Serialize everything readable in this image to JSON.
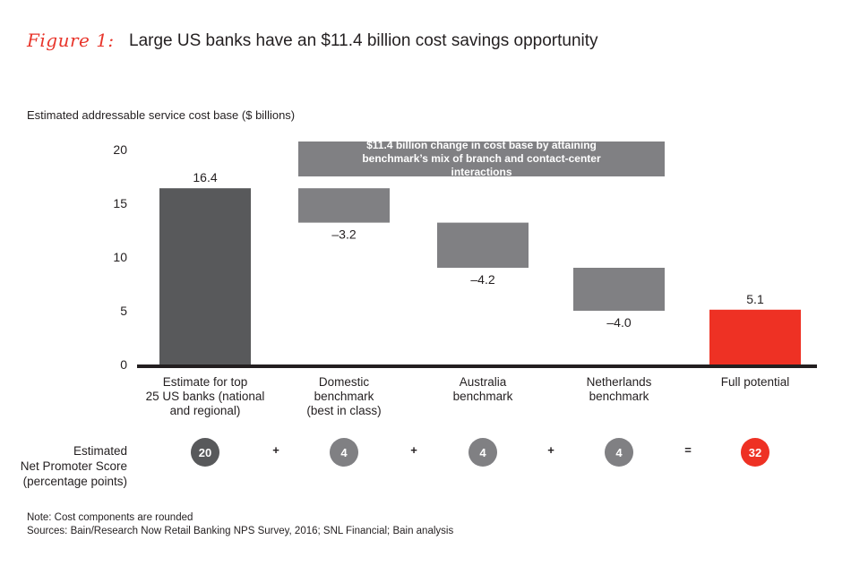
{
  "figure": {
    "label": "Figure 1:",
    "title": "Large US banks have an $11.4 billion cost savings opportunity",
    "y_caption": "Estimated addressable service cost base ($ billions)",
    "callout": "$11.4 billion change in cost base by attaining benchmark’s mix of branch and contact-center interactions"
  },
  "colors": {
    "start_bar": "#58595b",
    "decrease_bar": "#808083",
    "end_bar": "#ee3124",
    "axis": "#231f20"
  },
  "chart_data": {
    "type": "bar",
    "subtype": "waterfall",
    "title": "Large US banks have an $11.4 billion cost savings opportunity",
    "ylabel": "Estimated addressable service cost base ($ billions)",
    "xlabel": "",
    "ylim": [
      0,
      20
    ],
    "yticks": [
      0,
      5,
      10,
      15,
      20
    ],
    "grid": false,
    "categories": [
      "Estimate for top\n25 US banks (national\nand regional)",
      "Domestic\nbenchmark\n(best in class)",
      "Australia\nbenchmark",
      "Netherlands\nbenchmark",
      "Full potential"
    ],
    "bars": [
      {
        "kind": "total",
        "value": 16.4,
        "label": "16.4"
      },
      {
        "kind": "delta",
        "value": -3.2,
        "label": "–3.2"
      },
      {
        "kind": "delta",
        "value": -4.2,
        "label": "–4.2"
      },
      {
        "kind": "delta",
        "value": -4.0,
        "label": "–4.0"
      },
      {
        "kind": "total",
        "value": 5.1,
        "label": "5.1"
      }
    ],
    "annotation": "$11.4 billion change in cost base by attaining benchmark’s mix of branch and contact-center interactions"
  },
  "nps": {
    "label": "Estimated\nNet Promoter Score\n(percentage points)",
    "values": [
      "20",
      "4",
      "4",
      "4",
      "32"
    ],
    "operators": [
      "+",
      "+",
      "+",
      "="
    ]
  },
  "footer": {
    "note": "Note: Cost components are rounded",
    "sources": "Sources: Bain/Research Now Retail Banking NPS Survey, 2016; SNL Financial; Bain analysis"
  }
}
